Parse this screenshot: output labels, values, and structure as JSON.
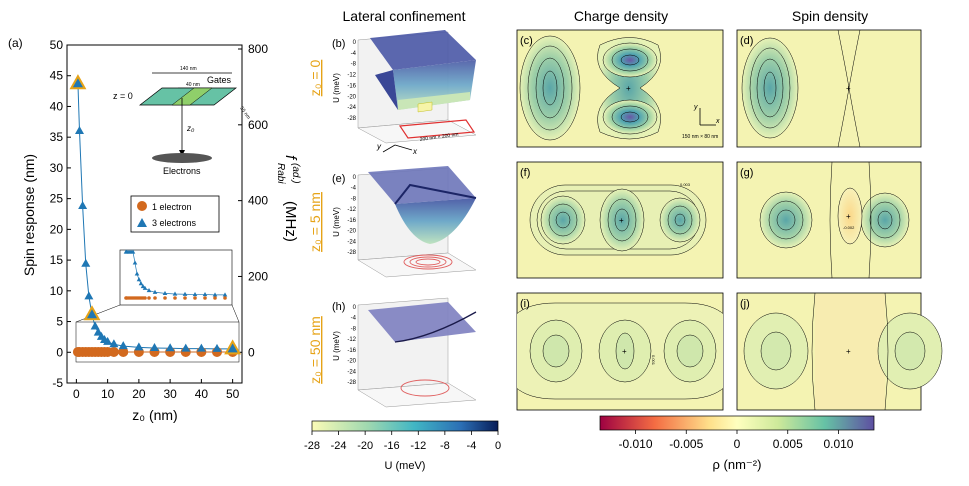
{
  "panel_a": {
    "label": "(a)",
    "ylabel": "Spin response (nm)",
    "xlabel": "z₀ (nm)",
    "ylabel_right": "f",
    "ylabel_right_sup": "(ad.)",
    "ylabel_right_sub": "Rabi",
    "ylabel_right_unit": "(MHz)",
    "left_ticks": [
      "-5",
      "0",
      "5",
      "10",
      "15",
      "20",
      "25",
      "30",
      "35",
      "40",
      "45",
      "50"
    ],
    "right_ticks": [
      "0",
      "200",
      "400",
      "600",
      "800"
    ],
    "x_ticks": [
      "0",
      "10",
      "20",
      "30",
      "40",
      "50"
    ],
    "legend": {
      "one": "1 electron",
      "three": "3 electrons"
    },
    "inset": {
      "width_label": "140 nm",
      "inner_label": "40 nm",
      "depth_label": "55 nm",
      "gates_label": "Gates",
      "z_label": "z = 0",
      "z0_label": "z₀",
      "electrons_label": "Electrons"
    }
  },
  "colors": {
    "one_electron": "#D2691E",
    "three_electrons": "#1F77B4",
    "highlight_ring": "#E6A317",
    "row_label": "#E6A317"
  },
  "chart_data": {
    "type": "scatter",
    "x": [
      0.5,
      1,
      2,
      3,
      4,
      5,
      6,
      7,
      8,
      9,
      10,
      12,
      15,
      20,
      25,
      30,
      35,
      40,
      45,
      50
    ],
    "series": [
      {
        "name": "1 electron",
        "values": [
          0.05,
          0.05,
          0.05,
          0.05,
          0.05,
          0.05,
          0.05,
          0.05,
          0.05,
          0.05,
          0.05,
          0.05,
          0.05,
          0.05,
          0.05,
          0.05,
          0.05,
          0.05,
          0.05,
          0.05
        ]
      },
      {
        "name": "3 electrons",
        "values": [
          43.7,
          36,
          23.8,
          14.4,
          9.1,
          6.1,
          4.2,
          3.2,
          2.5,
          2.0,
          1.7,
          1.3,
          1.0,
          0.8,
          0.7,
          0.65,
          0.6,
          0.6,
          0.55,
          0.55
        ]
      }
    ],
    "highlighted_x": [
      0.5,
      5,
      50
    ],
    "xlim": [
      -3,
      53
    ],
    "ylim": [
      -5,
      50
    ],
    "ylim_right": [
      0,
      800
    ]
  },
  "middle": {
    "title": "Lateral confinement",
    "panels": [
      {
        "label": "(b)",
        "row": "z₀ = 0",
        "ticks": [
          "0",
          "-4",
          "-8",
          "-12",
          "-16",
          "-20",
          "-24",
          "-28"
        ],
        "size_label": "200 nm × 200 nm"
      },
      {
        "label": "(e)",
        "row": "z₀ = 5 nm",
        "ticks": [
          "0",
          "-4",
          "-8",
          "-12",
          "-16",
          "-20",
          "-24",
          "-28"
        ]
      },
      {
        "label": "(h)",
        "row": "z₀ = 50 nm",
        "ticks": [
          "0",
          "-4",
          "-8",
          "-12",
          "-16",
          "-20",
          "-24",
          "-28"
        ]
      }
    ],
    "zlabel": "U (meV)",
    "axis_x": "x",
    "axis_y": "y",
    "colorbar": {
      "ticks": [
        "-28",
        "-24",
        "-20",
        "-16",
        "-12",
        "-8",
        "-4",
        "0"
      ],
      "label": "U (meV)"
    }
  },
  "charge": {
    "title": "Charge density",
    "panels": [
      {
        "label": "(c)",
        "scale_label": "150 nm × 80 nm",
        "axis_x": "x",
        "axis_y": "y"
      },
      {
        "label": "(f)"
      },
      {
        "label": "(i)"
      }
    ]
  },
  "spin": {
    "title": "Spin density",
    "panels": [
      {
        "label": "(d)"
      },
      {
        "label": "(g)"
      },
      {
        "label": "(j)"
      }
    ]
  },
  "colorbar_rho": {
    "ticks": [
      "-0.010",
      "-0.005",
      "0",
      "0.005",
      "0.010"
    ],
    "label": "ρ (nm⁻²)"
  },
  "contour_labels": {
    "small": "0.001",
    "med": "0.002",
    "big": "0.003",
    "neg": "-0.002"
  }
}
